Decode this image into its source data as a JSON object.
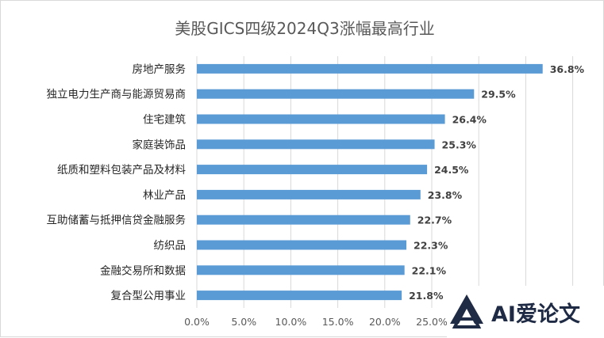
{
  "chart_data": {
    "type": "bar",
    "orientation": "horizontal",
    "title": "美股GICS四级2024Q3涨幅最高行业",
    "categories": [
      "房地产服务",
      "独立电力生产商与能源贸易商",
      "住宅建筑",
      "家庭装饰品",
      "纸质和塑料包装产品及材料",
      "林业产品",
      "互助储蓄与抵押信贷金融服务",
      "纺织品",
      "金融交易所和数据",
      "复合型公用事业"
    ],
    "values": [
      36.8,
      29.5,
      26.4,
      25.3,
      24.5,
      23.8,
      22.7,
      22.3,
      22.1,
      21.8
    ],
    "value_labels": [
      "36.8%",
      "29.5%",
      "26.4%",
      "25.3%",
      "24.5%",
      "23.8%",
      "22.7%",
      "22.3%",
      "22.1%",
      "21.8%"
    ],
    "x_ticks": [
      "0.0%",
      "5.0%",
      "10.0%",
      "15.0%",
      "20.0%",
      "25.0%"
    ],
    "xlim": [
      0,
      40
    ],
    "grid": "vertical",
    "legend": "none",
    "bar_color": "#5b9bd5"
  },
  "watermark": {
    "text": "AI爱论文",
    "icon": "ai-logo-icon"
  }
}
